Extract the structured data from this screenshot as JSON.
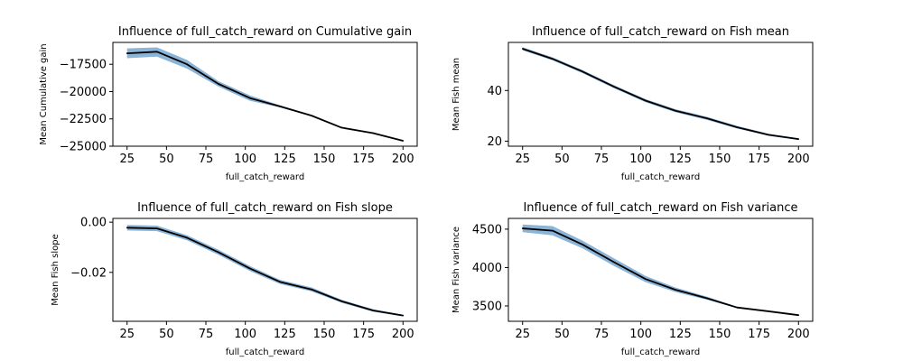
{
  "colors": {
    "line": "#000000",
    "band": "#8ab4d8",
    "axis": "#000000"
  },
  "chart_data": [
    {
      "type": "line",
      "title": "Influence of full_catch_reward on Cumulative gain",
      "xlabel": "full_catch_reward",
      "ylabel": "Mean Cumulative gain",
      "xlim": [
        16,
        209
      ],
      "ylim": [
        -25000,
        -15500
      ],
      "xticks": [
        25,
        50,
        75,
        100,
        125,
        150,
        175,
        200
      ],
      "xtick_labels": [
        "25",
        "50",
        "75",
        "100",
        "125",
        "150",
        "175",
        "200"
      ],
      "yticks": [
        -25000,
        -22500,
        -20000,
        -17500
      ],
      "ytick_labels": [
        "−25000",
        "−22500",
        "−20000",
        "−17500"
      ],
      "x": [
        25,
        44,
        63,
        83,
        103,
        122,
        142,
        161,
        181,
        200
      ],
      "series": [
        {
          "values": [
            -16500,
            -16350,
            -17500,
            -19300,
            -20600,
            -21350,
            -22200,
            -23300,
            -23800,
            -24500
          ],
          "lower": [
            -16950,
            -16800,
            -17900,
            -19550,
            -20850,
            -21450,
            -22260,
            -23340,
            -23830,
            -24530
          ],
          "upper": [
            -16050,
            -15950,
            -17100,
            -19050,
            -20350,
            -21250,
            -22140,
            -23260,
            -23770,
            -24470
          ]
        }
      ]
    },
    {
      "type": "line",
      "title": "Influence of full_catch_reward on Fish mean",
      "xlabel": "full_catch_reward",
      "ylabel": "Mean Fish mean",
      "xlim": [
        16,
        209
      ],
      "ylim": [
        18,
        59
      ],
      "xticks": [
        25,
        50,
        75,
        100,
        125,
        150,
        175,
        200
      ],
      "xtick_labels": [
        "25",
        "50",
        "75",
        "100",
        "125",
        "150",
        "175",
        "200"
      ],
      "yticks": [
        20,
        40
      ],
      "ytick_labels": [
        "20",
        "40"
      ],
      "x": [
        25,
        44,
        63,
        83,
        103,
        122,
        142,
        161,
        181,
        200
      ],
      "series": [
        {
          "values": [
            56.5,
            52.5,
            47.5,
            41.5,
            36.0,
            32.0,
            29.0,
            25.5,
            22.5,
            20.8
          ],
          "lower": [
            55.9,
            51.9,
            46.9,
            40.9,
            35.4,
            31.4,
            28.4,
            25.0,
            22.1,
            20.5
          ],
          "upper": [
            57.1,
            53.1,
            48.1,
            42.1,
            36.6,
            32.6,
            29.6,
            26.0,
            22.9,
            21.1
          ]
        }
      ]
    },
    {
      "type": "line",
      "title": "Influence of full_catch_reward on Fish slope",
      "xlabel": "full_catch_reward",
      "ylabel": "Mean Fish slope",
      "xlim": [
        16,
        209
      ],
      "ylim": [
        -0.0395,
        0.0015
      ],
      "xticks": [
        25,
        50,
        75,
        100,
        125,
        150,
        175,
        200
      ],
      "xtick_labels": [
        "25",
        "50",
        "75",
        "100",
        "125",
        "150",
        "175",
        "200"
      ],
      "yticks": [
        -0.02,
        0.0
      ],
      "ytick_labels": [
        "−0.02",
        "0.00"
      ],
      "x": [
        25,
        44,
        63,
        83,
        103,
        122,
        142,
        161,
        181,
        200
      ],
      "series": [
        {
          "values": [
            -0.0022,
            -0.0025,
            -0.0062,
            -0.012,
            -0.0185,
            -0.0238,
            -0.0268,
            -0.0315,
            -0.0352,
            -0.0372
          ],
          "lower": [
            -0.0033,
            -0.0036,
            -0.0072,
            -0.013,
            -0.0195,
            -0.0246,
            -0.0276,
            -0.0321,
            -0.0357,
            -0.0375
          ],
          "upper": [
            -0.0011,
            -0.0014,
            -0.0052,
            -0.011,
            -0.0175,
            -0.023,
            -0.026,
            -0.0309,
            -0.0347,
            -0.0369
          ]
        }
      ]
    },
    {
      "type": "line",
      "title": "Influence of full_catch_reward on Fish variance",
      "xlabel": "full_catch_reward",
      "ylabel": "Mean Fish variance",
      "xlim": [
        16,
        209
      ],
      "ylim": [
        3300,
        4640
      ],
      "xticks": [
        25,
        50,
        75,
        100,
        125,
        150,
        175,
        200
      ],
      "xtick_labels": [
        "25",
        "50",
        "75",
        "100",
        "125",
        "150",
        "175",
        "200"
      ],
      "yticks": [
        3500,
        4000,
        4500
      ],
      "ytick_labels": [
        "3500",
        "4000",
        "4500"
      ],
      "x": [
        25,
        44,
        63,
        83,
        103,
        122,
        142,
        161,
        181,
        200
      ],
      "series": [
        {
          "values": [
            4510,
            4480,
            4300,
            4070,
            3850,
            3710,
            3600,
            3480,
            3430,
            3380
          ],
          "lower": [
            4460,
            4420,
            4250,
            4020,
            3810,
            3680,
            3580,
            3470,
            3425,
            3375
          ],
          "upper": [
            4560,
            4540,
            4350,
            4120,
            3890,
            3740,
            3620,
            3490,
            3435,
            3385
          ]
        }
      ]
    }
  ]
}
